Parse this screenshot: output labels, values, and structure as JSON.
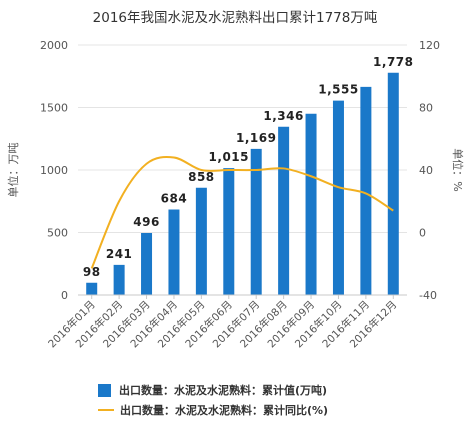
{
  "chart_data": {
    "type": "bar",
    "title": "2016年我国水泥及水泥熟料出口累计1778万吨",
    "categories": [
      "2016年01月",
      "2016年02月",
      "2016年03月",
      "2016年04月",
      "2016年05月",
      "2016年06月",
      "2016年07月",
      "2016年08月",
      "2016年09月",
      "2016年10月",
      "2016年11月",
      "2016年12月"
    ],
    "ylabel_left": "单位：万吨",
    "ylabel_right": "单位：%",
    "y_left": {
      "min": 0,
      "max": 2000,
      "ticks": [
        "0",
        "500",
        "1000",
        "1500",
        "2000"
      ]
    },
    "y_right": {
      "min": -40,
      "max": 120,
      "ticks": [
        "-40",
        "0",
        "40",
        "80",
        "120"
      ]
    },
    "series": [
      {
        "name": "出口数量：水泥及水泥熟料：累计值(万吨)",
        "kind": "bar",
        "axis": "left",
        "color": "#1a78c9",
        "values": [
          98,
          241,
          496,
          684,
          858,
          1015,
          1169,
          1346,
          1450,
          1555,
          1665,
          1778
        ],
        "labels": [
          "98",
          "241",
          "496",
          "684",
          "858",
          "1,015",
          "1,169",
          "1,346",
          "",
          "1,555",
          "",
          "1,778"
        ]
      },
      {
        "name": "出口数量：水泥及水泥熟料：累计同比(%)",
        "kind": "line",
        "axis": "right",
        "color": "#f2b021",
        "values": [
          -23,
          20,
          44,
          48,
          40,
          40,
          40,
          41,
          36,
          29,
          25,
          14
        ]
      }
    ],
    "grid": true,
    "legend_position": "bottom"
  }
}
